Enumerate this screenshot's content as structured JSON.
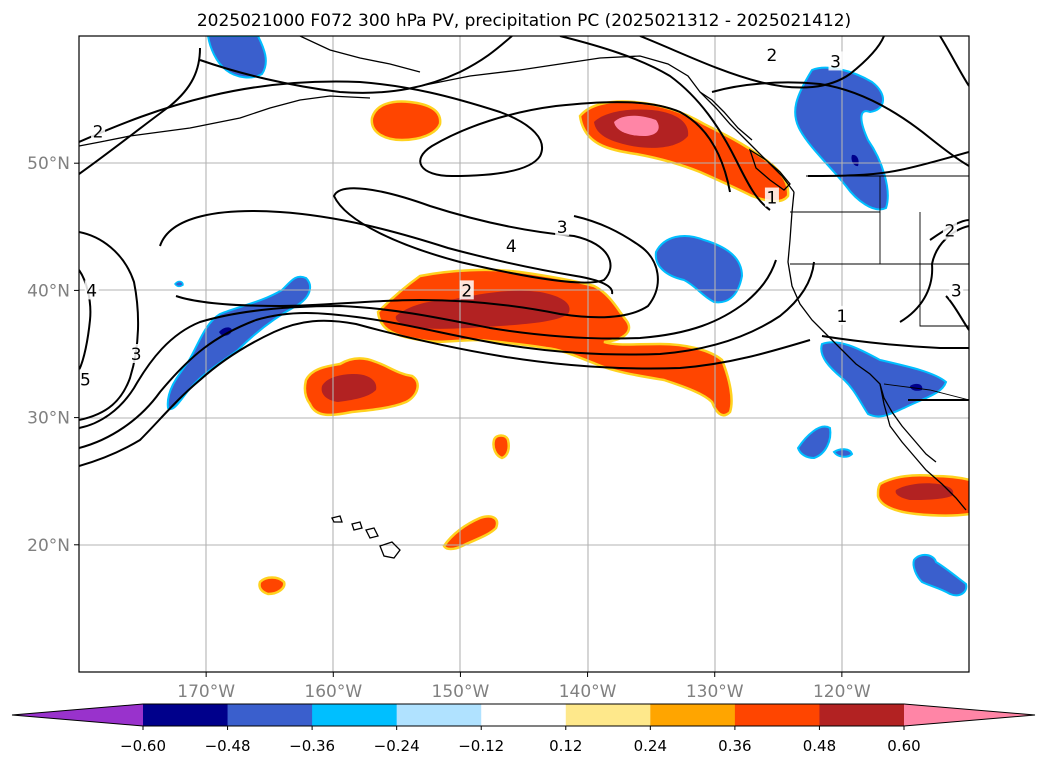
{
  "chart_data": {
    "type": "heatmap",
    "title": "2025021000 F072 300 hPa PV, precipitation PC (2025021312 - 2025021412)",
    "xlabel": "",
    "ylabel": "",
    "map_extent": {
      "lon": [
        -180,
        -110
      ],
      "lat": [
        10,
        60
      ]
    },
    "x_ticks": [
      {
        "value": -170,
        "label": "170°W"
      },
      {
        "value": -160,
        "label": "160°W"
      },
      {
        "value": -150,
        "label": "150°W"
      },
      {
        "value": -140,
        "label": "140°W"
      },
      {
        "value": -130,
        "label": "130°W"
      },
      {
        "value": -120,
        "label": "120°W"
      }
    ],
    "y_ticks": [
      {
        "value": 20,
        "label": "20°N"
      },
      {
        "value": 30,
        "label": "30°N"
      },
      {
        "value": 40,
        "label": "40°N"
      },
      {
        "value": 50,
        "label": "50°N"
      }
    ],
    "grid": true,
    "colorbar": {
      "orientation": "horizontal",
      "extend": "both",
      "levels": [
        -0.6,
        -0.48,
        -0.36,
        -0.24,
        -0.12,
        0.12,
        0.24,
        0.36,
        0.48,
        0.6
      ],
      "tick_labels": [
        "−0.60",
        "−0.48",
        "−0.36",
        "−0.24",
        "−0.12",
        "0.12",
        "0.24",
        "0.36",
        "0.48",
        "0.60"
      ],
      "colors": [
        "#9932cc",
        "#00008b",
        "#3a5fcd",
        "#00bfff",
        "#b0e2ff",
        "#ffffff",
        "#fee88b",
        "#ffa500",
        "#ff4500",
        "#b22222",
        "#ff85a6"
      ]
    },
    "pv_contours": {
      "levels": [
        1,
        2,
        3,
        4,
        5
      ],
      "labels": [
        {
          "text": "2",
          "lon": -149.5,
          "lat": 40.0
        },
        {
          "text": "3",
          "lon": -142.0,
          "lat": 45.0
        },
        {
          "text": "4",
          "lon": -146.0,
          "lat": 43.5
        },
        {
          "text": "2",
          "lon": -125.5,
          "lat": 58.5
        },
        {
          "text": "3",
          "lon": -120.5,
          "lat": 58.0
        },
        {
          "text": "3",
          "lon": -175.5,
          "lat": 35.0
        },
        {
          "text": "4",
          "lon": -179.0,
          "lat": 40.0
        },
        {
          "text": "5",
          "lon": -179.5,
          "lat": 33.0
        },
        {
          "text": "2",
          "lon": -178.5,
          "lat": 52.5
        },
        {
          "text": "1",
          "lon": -125.5,
          "lat": 47.3
        },
        {
          "text": "1",
          "lon": -120.0,
          "lat": 38.0
        },
        {
          "text": "2",
          "lon": -111.5,
          "lat": 44.7
        },
        {
          "text": "3",
          "lon": -111.0,
          "lat": 40.0
        }
      ]
    },
    "precip_regions": [
      {
        "sign": "positive",
        "lon": -147.0,
        "lat": 38.0,
        "max": 0.55
      },
      {
        "sign": "positive",
        "lon": -134.0,
        "lat": 50.0,
        "max": 0.62
      },
      {
        "sign": "positive",
        "lon": -159.5,
        "lat": 32.0,
        "max": 0.52
      },
      {
        "sign": "positive",
        "lon": -132.0,
        "lat": 33.0,
        "max": 0.45
      },
      {
        "sign": "positive",
        "lon": -151.5,
        "lat": 53.5,
        "max": 0.4
      },
      {
        "sign": "positive",
        "lon": -114.0,
        "lat": 24.0,
        "max": 0.5
      },
      {
        "sign": "positive",
        "lon": -149.0,
        "lat": 21.0,
        "max": 0.4
      },
      {
        "sign": "positive",
        "lon": -147.0,
        "lat": 27.5,
        "max": 0.4
      },
      {
        "sign": "positive",
        "lon": -164.5,
        "lat": 16.5,
        "max": 0.4
      },
      {
        "sign": "negative",
        "lon": -168.0,
        "lat": 36.0,
        "min": -0.52
      },
      {
        "sign": "negative",
        "lon": -120.0,
        "lat": 50.0,
        "min": -0.52
      },
      {
        "sign": "negative",
        "lon": -131.0,
        "lat": 41.5,
        "min": -0.4
      },
      {
        "sign": "negative",
        "lon": -116.0,
        "lat": 33.0,
        "min": -0.52
      },
      {
        "sign": "negative",
        "lon": -166.5,
        "lat": 58.5,
        "min": -0.4
      },
      {
        "sign": "negative",
        "lon": -122.0,
        "lat": 28.0,
        "min": -0.4
      },
      {
        "sign": "negative",
        "lon": -114.5,
        "lat": 17.0,
        "min": -0.45
      }
    ]
  }
}
